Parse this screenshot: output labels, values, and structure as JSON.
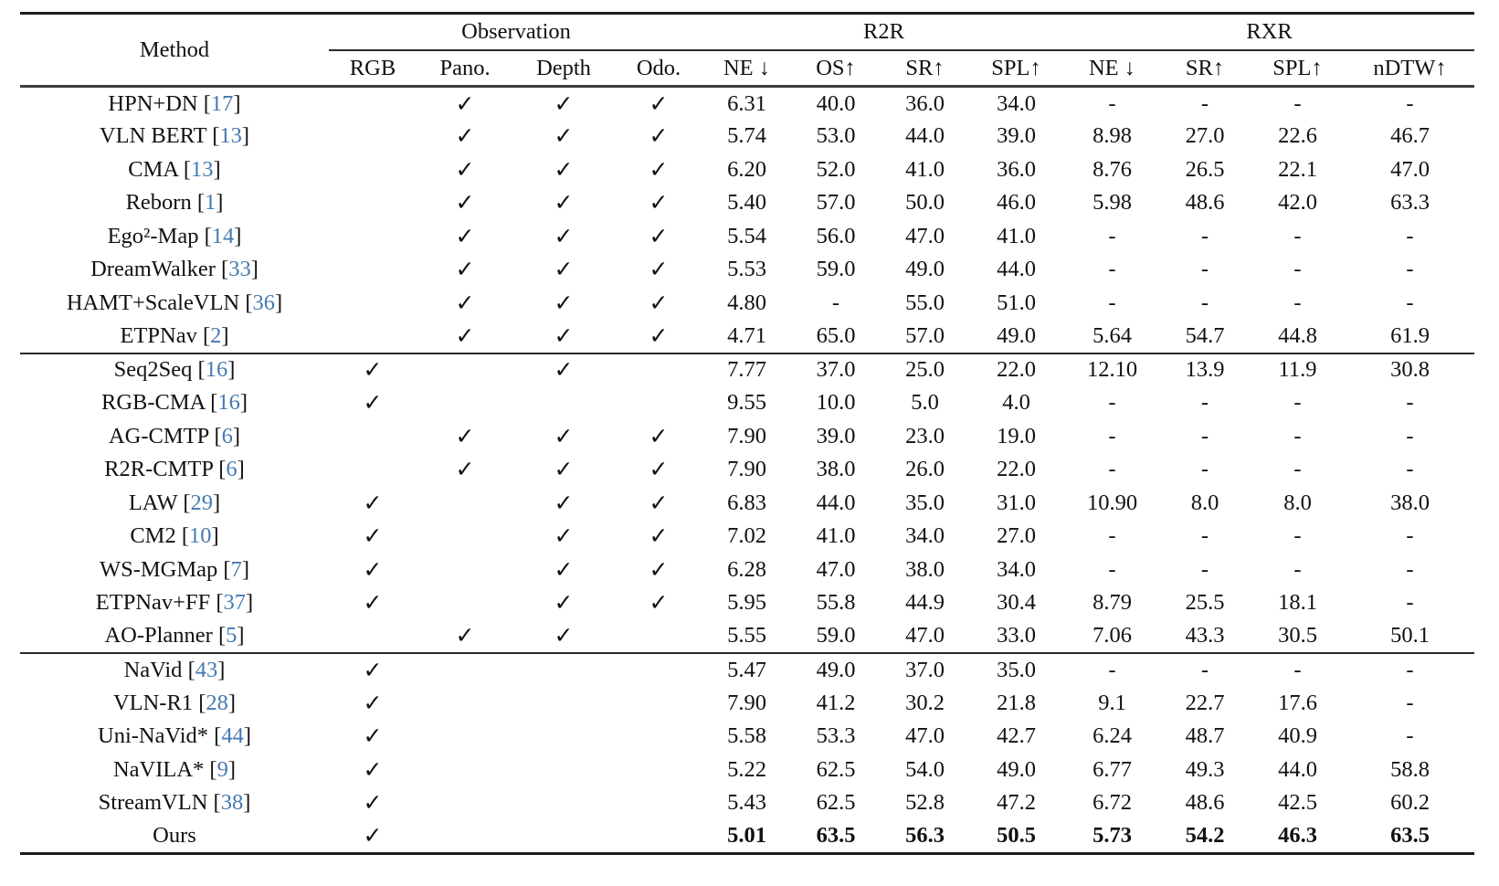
{
  "colors": {
    "citation": "#4579b2",
    "text": "#111111",
    "rule": "#1c1c1c"
  },
  "icons": {
    "check": "✓"
  },
  "table": {
    "method_header": "Method",
    "groups": [
      {
        "label": "Observation",
        "span": 4
      },
      {
        "label": "R2R",
        "span": 4
      },
      {
        "label": "RXR",
        "span": 4
      }
    ],
    "sub_headers": [
      "RGB",
      "Pano.",
      "Depth",
      "Odo.",
      "NE ↓",
      "OS↑",
      "SR↑",
      "SPL↑",
      "NE ↓",
      "SR↑",
      "SPL↑",
      "nDTW↑"
    ],
    "sections": [
      {
        "rows": [
          {
            "method": "HPN+DN",
            "cite": "17",
            "checks": [
              false,
              true,
              true,
              true
            ],
            "values": [
              "6.31",
              "40.0",
              "36.0",
              "34.0",
              "-",
              "-",
              "-",
              "-"
            ],
            "bold": false
          },
          {
            "method": "VLN BERT",
            "cite": "13",
            "checks": [
              false,
              true,
              true,
              true
            ],
            "values": [
              "5.74",
              "53.0",
              "44.0",
              "39.0",
              "8.98",
              "27.0",
              "22.6",
              "46.7"
            ],
            "bold": false
          },
          {
            "method": "CMA",
            "cite": "13",
            "checks": [
              false,
              true,
              true,
              true
            ],
            "values": [
              "6.20",
              "52.0",
              "41.0",
              "36.0",
              "8.76",
              "26.5",
              "22.1",
              "47.0"
            ],
            "bold": false
          },
          {
            "method": "Reborn",
            "cite": "1",
            "checks": [
              false,
              true,
              true,
              true
            ],
            "values": [
              "5.40",
              "57.0",
              "50.0",
              "46.0",
              "5.98",
              "48.6",
              "42.0",
              "63.3"
            ],
            "bold": false
          },
          {
            "method": "Ego²-Map",
            "cite": "14",
            "checks": [
              false,
              true,
              true,
              true
            ],
            "values": [
              "5.54",
              "56.0",
              "47.0",
              "41.0",
              "-",
              "-",
              "-",
              "-"
            ],
            "bold": false
          },
          {
            "method": "DreamWalker",
            "cite": "33",
            "checks": [
              false,
              true,
              true,
              true
            ],
            "values": [
              "5.53",
              "59.0",
              "49.0",
              "44.0",
              "-",
              "-",
              "-",
              "-"
            ],
            "bold": false
          },
          {
            "method": "HAMT+ScaleVLN",
            "cite": "36",
            "checks": [
              false,
              true,
              true,
              true
            ],
            "values": [
              "4.80",
              "-",
              "55.0",
              "51.0",
              "-",
              "-",
              "-",
              "-"
            ],
            "bold": false
          },
          {
            "method": "ETPNav",
            "cite": "2",
            "checks": [
              false,
              true,
              true,
              true
            ],
            "values": [
              "4.71",
              "65.0",
              "57.0",
              "49.0",
              "5.64",
              "54.7",
              "44.8",
              "61.9"
            ],
            "bold": false
          }
        ]
      },
      {
        "rows": [
          {
            "method": "Seq2Seq",
            "cite": "16",
            "checks": [
              true,
              false,
              true,
              false
            ],
            "values": [
              "7.77",
              "37.0",
              "25.0",
              "22.0",
              "12.10",
              "13.9",
              "11.9",
              "30.8"
            ],
            "bold": false
          },
          {
            "method": "RGB-CMA",
            "cite": "16",
            "checks": [
              true,
              false,
              false,
              false
            ],
            "values": [
              "9.55",
              "10.0",
              "5.0",
              "4.0",
              "-",
              "-",
              "-",
              "-"
            ],
            "bold": false
          },
          {
            "method": "AG-CMTP",
            "cite": "6",
            "checks": [
              false,
              true,
              true,
              true
            ],
            "values": [
              "7.90",
              "39.0",
              "23.0",
              "19.0",
              "-",
              "-",
              "-",
              "-"
            ],
            "bold": false
          },
          {
            "method": "R2R-CMTP",
            "cite": "6",
            "checks": [
              false,
              true,
              true,
              true
            ],
            "values": [
              "7.90",
              "38.0",
              "26.0",
              "22.0",
              "-",
              "-",
              "-",
              "-"
            ],
            "bold": false
          },
          {
            "method": "LAW",
            "cite": "29",
            "checks": [
              true,
              false,
              true,
              true
            ],
            "values": [
              "6.83",
              "44.0",
              "35.0",
              "31.0",
              "10.90",
              "8.0",
              "8.0",
              "38.0"
            ],
            "bold": false
          },
          {
            "method": "CM2",
            "cite": "10",
            "checks": [
              true,
              false,
              true,
              true
            ],
            "values": [
              "7.02",
              "41.0",
              "34.0",
              "27.0",
              "-",
              "-",
              "-",
              "-"
            ],
            "bold": false
          },
          {
            "method": "WS-MGMap",
            "cite": "7",
            "checks": [
              true,
              false,
              true,
              true
            ],
            "values": [
              "6.28",
              "47.0",
              "38.0",
              "34.0",
              "-",
              "-",
              "-",
              "-"
            ],
            "bold": false
          },
          {
            "method": "ETPNav+FF",
            "cite": "37",
            "checks": [
              true,
              false,
              true,
              true
            ],
            "values": [
              "5.95",
              "55.8",
              "44.9",
              "30.4",
              "8.79",
              "25.5",
              "18.1",
              "-"
            ],
            "bold": false
          },
          {
            "method": "AO-Planner",
            "cite": "5",
            "checks": [
              false,
              true,
              true,
              false
            ],
            "values": [
              "5.55",
              "59.0",
              "47.0",
              "33.0",
              "7.06",
              "43.3",
              "30.5",
              "50.1"
            ],
            "bold": false
          }
        ]
      },
      {
        "rows": [
          {
            "method": "NaVid",
            "cite": "43",
            "checks": [
              true,
              false,
              false,
              false
            ],
            "values": [
              "5.47",
              "49.0",
              "37.0",
              "35.0",
              "-",
              "-",
              "-",
              "-"
            ],
            "bold": false
          },
          {
            "method": "VLN-R1",
            "cite": "28",
            "checks": [
              true,
              false,
              false,
              false
            ],
            "values": [
              "7.90",
              "41.2",
              "30.2",
              "21.8",
              "9.1",
              "22.7",
              "17.6",
              "-"
            ],
            "bold": false
          },
          {
            "method": "Uni-NaVid*",
            "cite": "44",
            "checks": [
              true,
              false,
              false,
              false
            ],
            "values": [
              "5.58",
              "53.3",
              "47.0",
              "42.7",
              "6.24",
              "48.7",
              "40.9",
              "-"
            ],
            "bold": false
          },
          {
            "method": "NaVILA*",
            "cite": "9",
            "checks": [
              true,
              false,
              false,
              false
            ],
            "values": [
              "5.22",
              "62.5",
              "54.0",
              "49.0",
              "6.77",
              "49.3",
              "44.0",
              "58.8"
            ],
            "bold": false
          },
          {
            "method": "StreamVLN",
            "cite": "38",
            "checks": [
              true,
              false,
              false,
              false
            ],
            "values": [
              "5.43",
              "62.5",
              "52.8",
              "47.2",
              "6.72",
              "48.6",
              "42.5",
              "60.2"
            ],
            "bold": false
          },
          {
            "method": "Ours",
            "cite": null,
            "checks": [
              true,
              false,
              false,
              false
            ],
            "values": [
              "5.01",
              "63.5",
              "56.3",
              "50.5",
              "5.73",
              "54.2",
              "46.3",
              "63.5"
            ],
            "bold": true
          }
        ]
      }
    ]
  }
}
